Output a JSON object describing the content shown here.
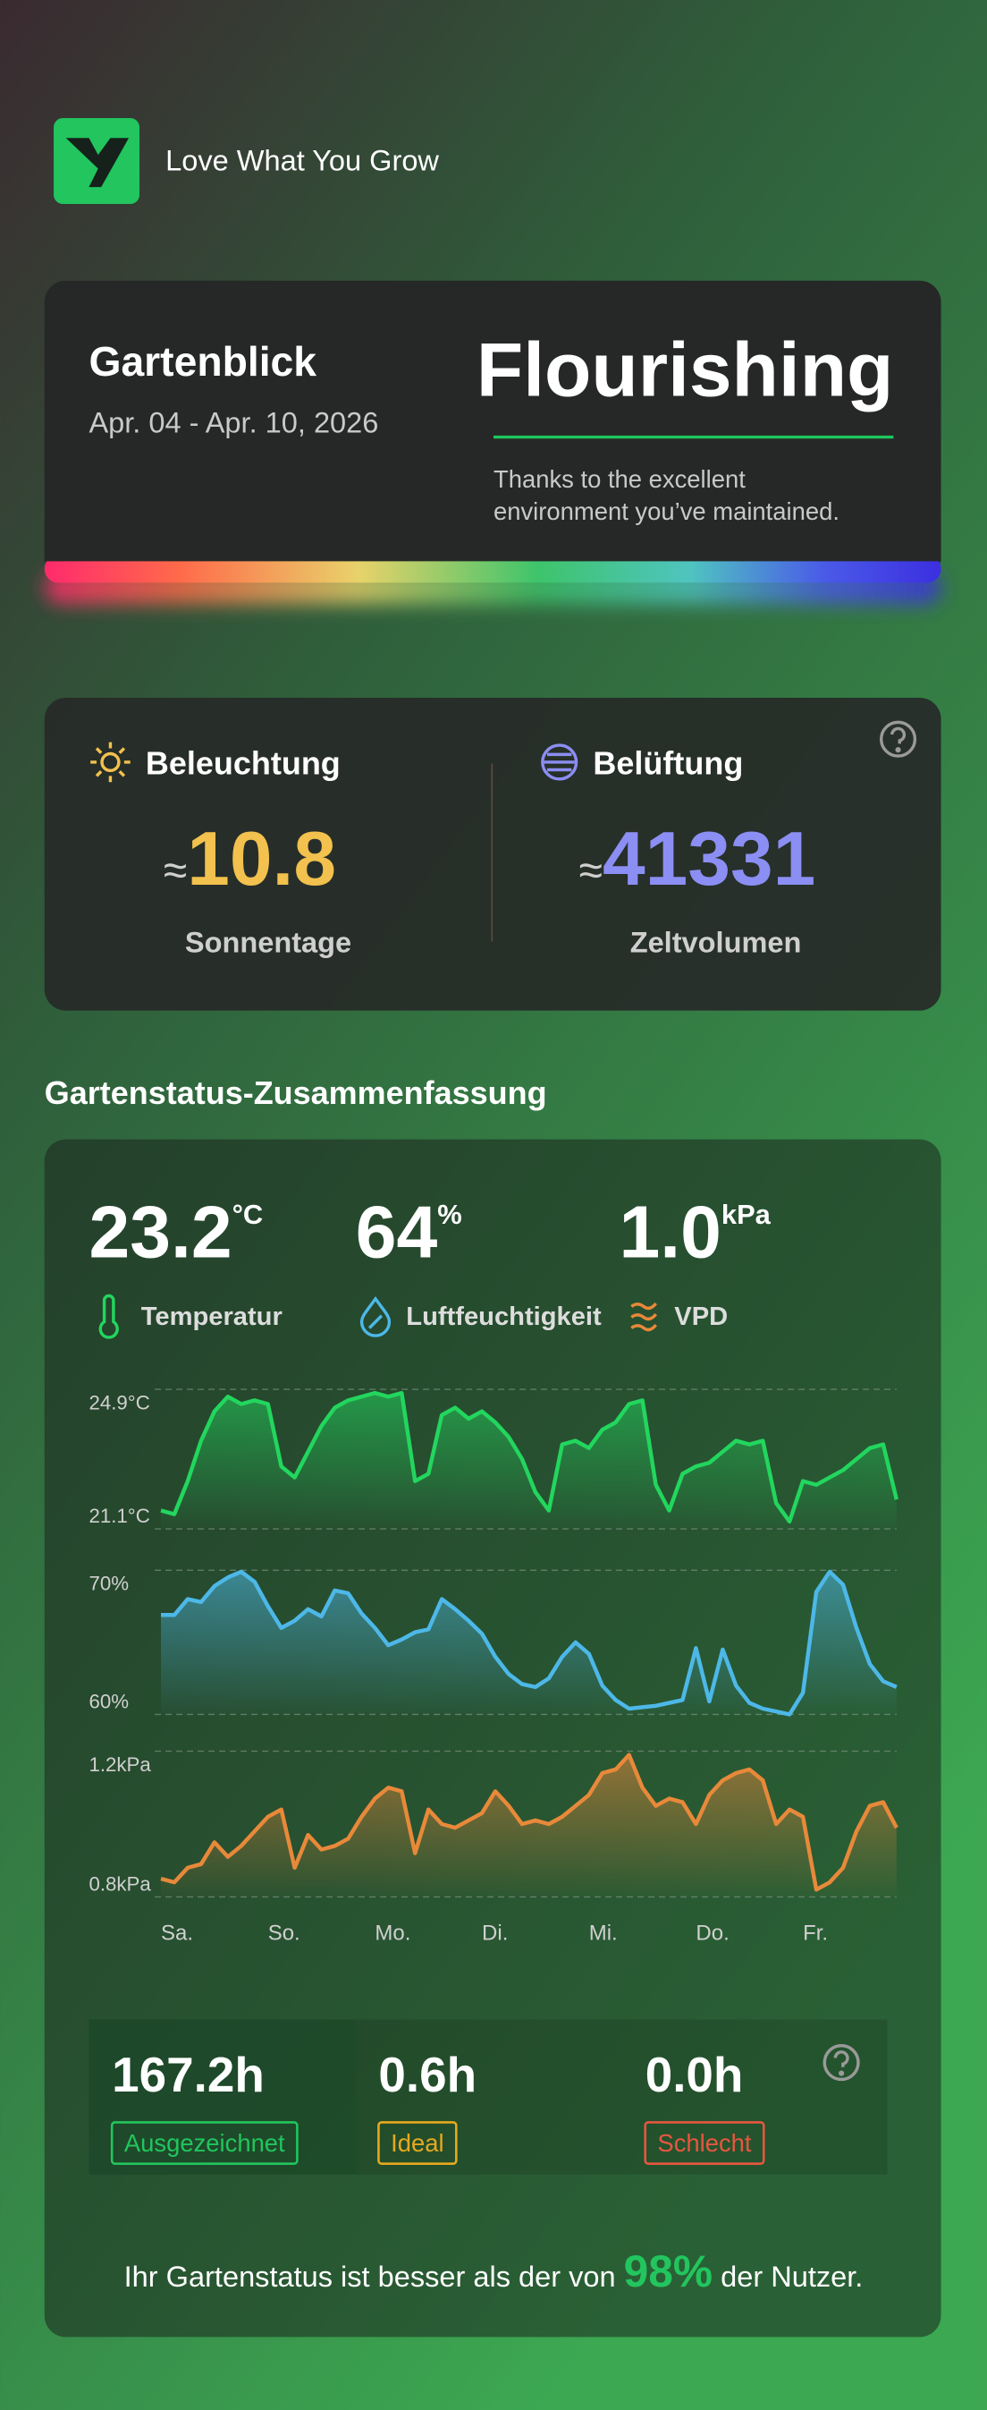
{
  "header": {
    "brand": "Love What You Grow"
  },
  "summary": {
    "title": "Gartenblick",
    "date_range": "Apr. 04 - Apr. 10, 2026",
    "status": "Flourishing",
    "message_lines": [
      "Thanks to the excellent",
      "environment you’ve maintained."
    ]
  },
  "metrics": [
    {
      "title": "Beleuchtung",
      "approx": "≈",
      "value": 10.8,
      "unit": "Sonnentage"
    },
    {
      "title": "Belüftung",
      "approx": "≈",
      "value": 41331,
      "unit": "Zeltvolumen"
    }
  ],
  "section_title": "Gartenstatus-Zusammenfassung",
  "readings": [
    {
      "value": "23.2",
      "unit": "°C",
      "label": "Temperatur"
    },
    {
      "value": "64",
      "unit": "%",
      "label": "Luftfeuchtigkeit"
    },
    {
      "value": "1.0",
      "unit": "kPa",
      "label": "VPD"
    }
  ],
  "chart_data": [
    {
      "type": "line",
      "color": "#22d65e",
      "ylim": [
        21.1,
        24.9
      ],
      "yticks": [
        {
          "value": 24.9,
          "label": "24.9°C"
        },
        {
          "value": 21.1,
          "label": "21.1°C"
        }
      ],
      "values": [
        21.6,
        21.5,
        22.4,
        23.5,
        24.3,
        24.7,
        24.5,
        24.6,
        24.5,
        22.8,
        22.5,
        23.2,
        23.9,
        24.4,
        24.6,
        24.7,
        24.8,
        24.7,
        24.8,
        22.4,
        22.6,
        24.2,
        24.4,
        24.1,
        24.3,
        24.0,
        23.6,
        23.0,
        22.1,
        21.6,
        23.4,
        23.5,
        23.3,
        23.8,
        24.0,
        24.5,
        24.6,
        22.3,
        21.6,
        22.6,
        22.8,
        22.9,
        23.2,
        23.5,
        23.4,
        23.5,
        21.8,
        21.3,
        22.4,
        22.3,
        22.5,
        22.7,
        23.0,
        23.3,
        23.4,
        21.9
      ]
    },
    {
      "type": "line",
      "color": "#4db8e8",
      "ylim": [
        60,
        70
      ],
      "yticks": [
        {
          "value": 70,
          "label": "70%"
        },
        {
          "value": 60,
          "label": "60%"
        }
      ],
      "values": [
        66.9,
        66.9,
        68.0,
        67.8,
        68.9,
        69.5,
        69.9,
        69.2,
        67.5,
        66.0,
        66.5,
        67.3,
        66.8,
        68.6,
        68.4,
        67.0,
        66.0,
        64.8,
        65.2,
        65.7,
        65.9,
        68.0,
        67.3,
        66.5,
        65.6,
        64.0,
        62.8,
        62.1,
        61.9,
        62.5,
        64.0,
        65.0,
        64.2,
        62.0,
        61.0,
        60.4,
        60.5,
        60.6,
        60.8,
        61.0,
        64.6,
        60.9,
        64.5,
        62.0,
        60.8,
        60.4,
        60.2,
        60.0,
        61.5,
        68.5,
        69.9,
        69.0,
        66.0,
        63.5,
        62.3,
        61.9
      ]
    },
    {
      "type": "line",
      "color": "#e8893a",
      "ylim": [
        0.8,
        1.2
      ],
      "yticks": [
        {
          "value": 1.2,
          "label": "1.2kPa"
        },
        {
          "value": 0.8,
          "label": "0.8kPa"
        }
      ],
      "categories": [
        "Sa.",
        null,
        null,
        null,
        null,
        null,
        null,
        null,
        "So.",
        null,
        null,
        null,
        null,
        null,
        null,
        null,
        "Mo.",
        null,
        null,
        null,
        null,
        null,
        null,
        null,
        "Di.",
        null,
        null,
        null,
        null,
        null,
        null,
        null,
        "Mi.",
        null,
        null,
        null,
        null,
        null,
        null,
        null,
        "Do.",
        null,
        null,
        null,
        null,
        null,
        null,
        null,
        "Fr.",
        null,
        null,
        null,
        null,
        null,
        null,
        null
      ],
      "values": [
        0.85,
        0.84,
        0.88,
        0.89,
        0.95,
        0.91,
        0.94,
        0.98,
        1.02,
        1.04,
        0.88,
        0.97,
        0.93,
        0.94,
        0.96,
        1.02,
        1.07,
        1.1,
        1.09,
        0.92,
        1.04,
        1.0,
        0.99,
        1.01,
        1.03,
        1.09,
        1.05,
        1.0,
        1.01,
        1.0,
        1.02,
        1.05,
        1.08,
        1.14,
        1.15,
        1.19,
        1.1,
        1.05,
        1.07,
        1.06,
        1.0,
        1.08,
        1.12,
        1.14,
        1.15,
        1.12,
        1.0,
        1.04,
        1.02,
        0.82,
        0.84,
        0.88,
        0.98,
        1.05,
        1.06,
        0.99
      ]
    }
  ],
  "hours": [
    {
      "value": "167.2h",
      "label": "Ausgezeichnet",
      "color": "#22c55e"
    },
    {
      "value": "0.6h",
      "label": "Ideal",
      "color": "#e6a91e"
    },
    {
      "value": "0.0h",
      "label": "Schlecht",
      "color": "#e8563f"
    }
  ],
  "footer": {
    "prefix": "Ihr Gartenstatus ist besser als der von ",
    "percent": "98%",
    "suffix": " der Nutzer."
  }
}
